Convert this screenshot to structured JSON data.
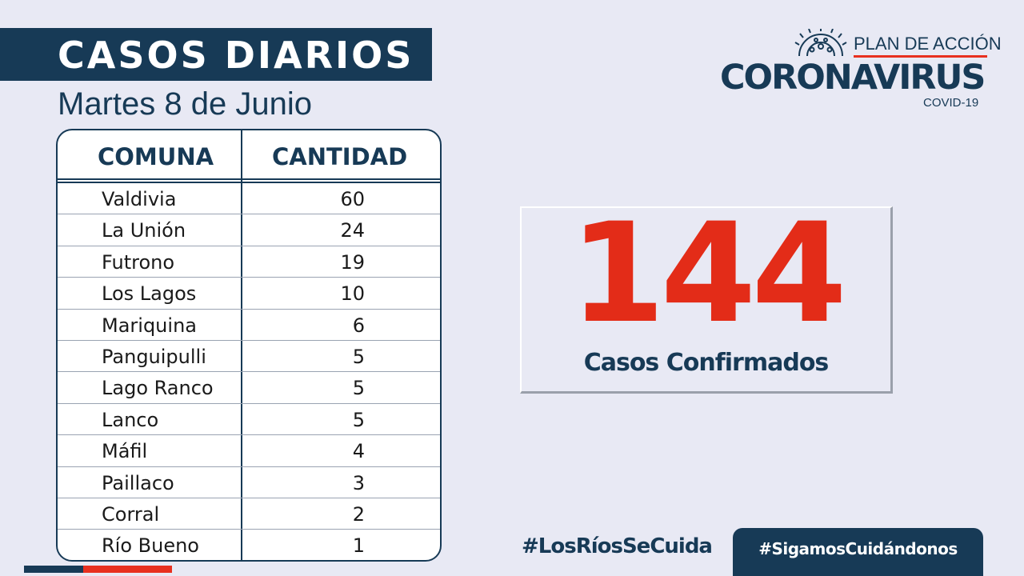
{
  "header": {
    "title": "CASOS DIARIOS",
    "date": "Martes 8 de Junio"
  },
  "table": {
    "col_comuna": "COMUNA",
    "col_cantidad": "CANTIDAD",
    "rows": [
      {
        "comuna": "Valdivia",
        "cantidad": "60"
      },
      {
        "comuna": "La Unión",
        "cantidad": "24"
      },
      {
        "comuna": "Futrono",
        "cantidad": "19"
      },
      {
        "comuna": "Los Lagos",
        "cantidad": "10"
      },
      {
        "comuna": "Mariquina",
        "cantidad": "6"
      },
      {
        "comuna": "Panguipulli",
        "cantidad": "5"
      },
      {
        "comuna": "Lago Ranco",
        "cantidad": "5"
      },
      {
        "comuna": "Lanco",
        "cantidad": "5"
      },
      {
        "comuna": "Máfil",
        "cantidad": "4"
      },
      {
        "comuna": "Paillaco",
        "cantidad": "3"
      },
      {
        "comuna": "Corral",
        "cantidad": "2"
      },
      {
        "comuna": "Río Bueno",
        "cantidad": "1"
      }
    ]
  },
  "total": {
    "number": "144",
    "label": "Casos Confirmados"
  },
  "logo": {
    "plan": "PLAN DE ACCIÓN",
    "main": "CORONAVIRUS",
    "sub": "COVID-19",
    "icon": "virus-icon"
  },
  "footer": {
    "hashtag1": "#LosRíosSeCuida",
    "hashtag2": "#SigamosCuidándonos"
  },
  "colors": {
    "navy": "#173a56",
    "red": "#e32c18",
    "background": "#e8e9f4"
  }
}
